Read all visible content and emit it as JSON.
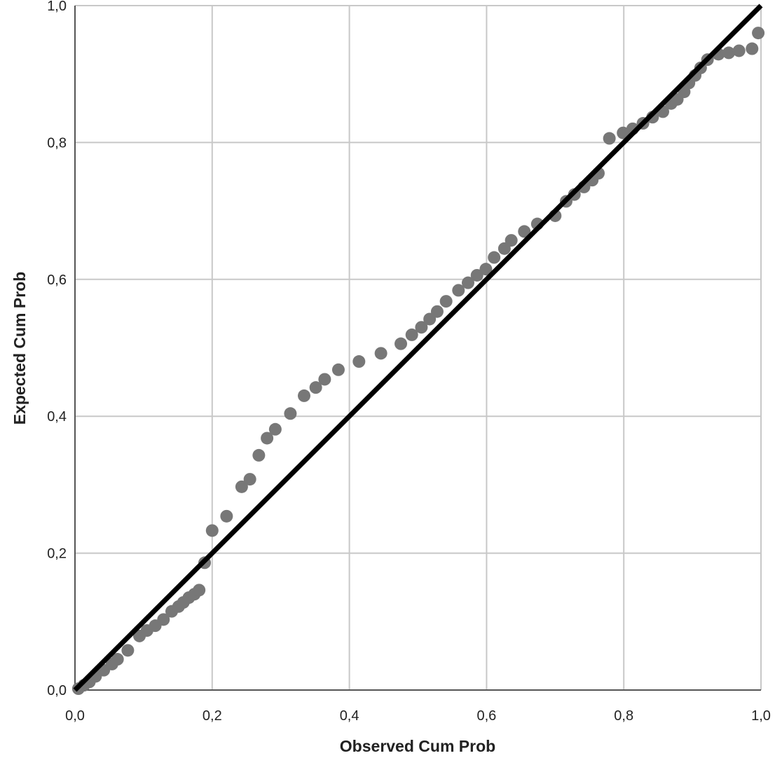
{
  "chart_data": {
    "type": "scatter",
    "title": "",
    "xlabel": "Observed Cum Prob",
    "ylabel": "Expected Cum Prob",
    "xlim": [
      0,
      1
    ],
    "ylim": [
      0,
      1
    ],
    "grid": true,
    "xticks": [
      "0,0",
      "0,2",
      "0,4",
      "0,6",
      "0,8",
      "1,0"
    ],
    "yticks": [
      "0,0",
      "0,2",
      "0,4",
      "0,6",
      "0,8",
      "1,0"
    ],
    "tick_values": [
      0,
      0.2,
      0.4,
      0.6,
      0.8,
      1.0
    ],
    "reference_line": {
      "from": [
        0,
        0
      ],
      "to": [
        1,
        1
      ],
      "color": "#000000"
    },
    "point_color": "#777777",
    "grid_color": "#c8c8c8",
    "points": [
      [
        0.005,
        0.002
      ],
      [
        0.013,
        0.007
      ],
      [
        0.021,
        0.012
      ],
      [
        0.03,
        0.02
      ],
      [
        0.042,
        0.029
      ],
      [
        0.054,
        0.038
      ],
      [
        0.062,
        0.045
      ],
      [
        0.077,
        0.058
      ],
      [
        0.094,
        0.079
      ],
      [
        0.105,
        0.087
      ],
      [
        0.117,
        0.094
      ],
      [
        0.129,
        0.103
      ],
      [
        0.141,
        0.115
      ],
      [
        0.151,
        0.122
      ],
      [
        0.158,
        0.128
      ],
      [
        0.166,
        0.135
      ],
      [
        0.174,
        0.14
      ],
      [
        0.181,
        0.146
      ],
      [
        0.189,
        0.186
      ],
      [
        0.2,
        0.233
      ],
      [
        0.221,
        0.254
      ],
      [
        0.243,
        0.297
      ],
      [
        0.255,
        0.308
      ],
      [
        0.268,
        0.343
      ],
      [
        0.28,
        0.368
      ],
      [
        0.292,
        0.381
      ],
      [
        0.314,
        0.404
      ],
      [
        0.334,
        0.43
      ],
      [
        0.351,
        0.442
      ],
      [
        0.364,
        0.454
      ],
      [
        0.384,
        0.468
      ],
      [
        0.414,
        0.48
      ],
      [
        0.446,
        0.492
      ],
      [
        0.475,
        0.506
      ],
      [
        0.491,
        0.519
      ],
      [
        0.505,
        0.53
      ],
      [
        0.517,
        0.542
      ],
      [
        0.528,
        0.553
      ],
      [
        0.541,
        0.568
      ],
      [
        0.559,
        0.584
      ],
      [
        0.573,
        0.595
      ],
      [
        0.586,
        0.606
      ],
      [
        0.599,
        0.615
      ],
      [
        0.611,
        0.632
      ],
      [
        0.626,
        0.645
      ],
      [
        0.636,
        0.657
      ],
      [
        0.655,
        0.67
      ],
      [
        0.674,
        0.681
      ],
      [
        0.7,
        0.693
      ],
      [
        0.716,
        0.714
      ],
      [
        0.728,
        0.724
      ],
      [
        0.742,
        0.735
      ],
      [
        0.754,
        0.745
      ],
      [
        0.763,
        0.755
      ],
      [
        0.779,
        0.806
      ],
      [
        0.799,
        0.814
      ],
      [
        0.813,
        0.82
      ],
      [
        0.828,
        0.828
      ],
      [
        0.842,
        0.837
      ],
      [
        0.857,
        0.845
      ],
      [
        0.869,
        0.857
      ],
      [
        0.878,
        0.863
      ],
      [
        0.888,
        0.874
      ],
      [
        0.895,
        0.887
      ],
      [
        0.904,
        0.898
      ],
      [
        0.912,
        0.909
      ],
      [
        0.922,
        0.921
      ],
      [
        0.938,
        0.929
      ],
      [
        0.953,
        0.931
      ],
      [
        0.968,
        0.934
      ],
      [
        0.987,
        0.937
      ],
      [
        0.996,
        0.96
      ]
    ]
  }
}
